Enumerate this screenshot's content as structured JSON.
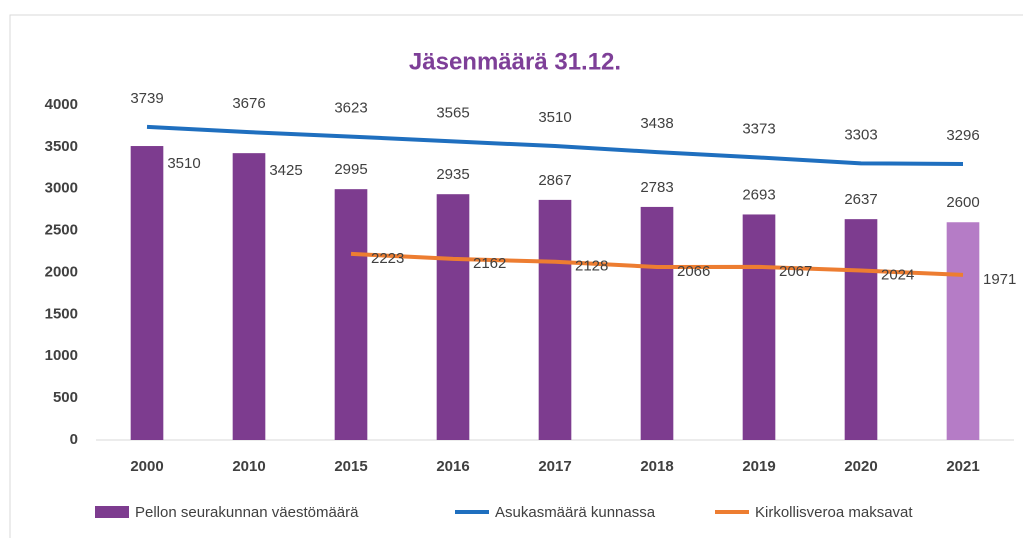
{
  "chart_data": {
    "type": "bar-line",
    "title": "Jäsenmäärä 31.12.",
    "categories": [
      "2000",
      "2010",
      "2015",
      "2016",
      "2017",
      "2018",
      "2019",
      "2020",
      "2021"
    ],
    "series": [
      {
        "name": "Pellon seurakunnan väestömäärä",
        "type": "bar",
        "color": "#7d3c8f",
        "colors": [
          "#7d3c8f",
          "#7d3c8f",
          "#7d3c8f",
          "#7d3c8f",
          "#7d3c8f",
          "#7d3c8f",
          "#7d3c8f",
          "#7d3c8f",
          "#b57cc6"
        ],
        "values": [
          3510,
          3425,
          2995,
          2935,
          2867,
          2783,
          2693,
          2637,
          2600
        ]
      },
      {
        "name": "Asukasmäärä kunnassa",
        "type": "line",
        "color": "#1f6fbf",
        "values": [
          3739,
          3676,
          3623,
          3565,
          3510,
          3438,
          3373,
          3303,
          3296
        ]
      },
      {
        "name": "Kirkollisveroa maksavat",
        "type": "line",
        "color": "#ed7d31",
        "values": [
          null,
          null,
          2223,
          2162,
          2128,
          2066,
          2067,
          2024,
          1971
        ]
      }
    ],
    "ylim": [
      0,
      4000
    ],
    "yticks": [
      0,
      500,
      1000,
      1500,
      2000,
      2500,
      3000,
      3500,
      4000
    ],
    "grid": false,
    "legend": "bottom"
  }
}
